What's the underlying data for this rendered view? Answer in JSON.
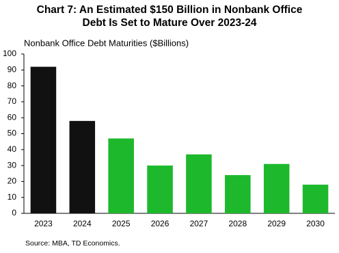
{
  "chart_data": {
    "type": "bar",
    "title": "Chart 7: An Estimated $150 Billion in Nonbank Office Debt Is Set to Mature Over 2023-24",
    "y_label": "Nonbank Office Debt Maturities ($Billions)",
    "source": "Source: MBA, TD Economics.",
    "categories": [
      "2023",
      "2024",
      "2025",
      "2026",
      "2027",
      "2028",
      "2029",
      "2030"
    ],
    "values": [
      92,
      58,
      47,
      30,
      37,
      24,
      31,
      18
    ],
    "colors": [
      "#111111",
      "#111111",
      "#1db82c",
      "#1db82c",
      "#1db82c",
      "#1db82c",
      "#1db82c",
      "#1db82c"
    ],
    "ylim": [
      0,
      100
    ],
    "yticks": [
      0,
      10,
      20,
      30,
      40,
      50,
      60,
      70,
      80,
      90,
      100
    ],
    "grid": false
  }
}
